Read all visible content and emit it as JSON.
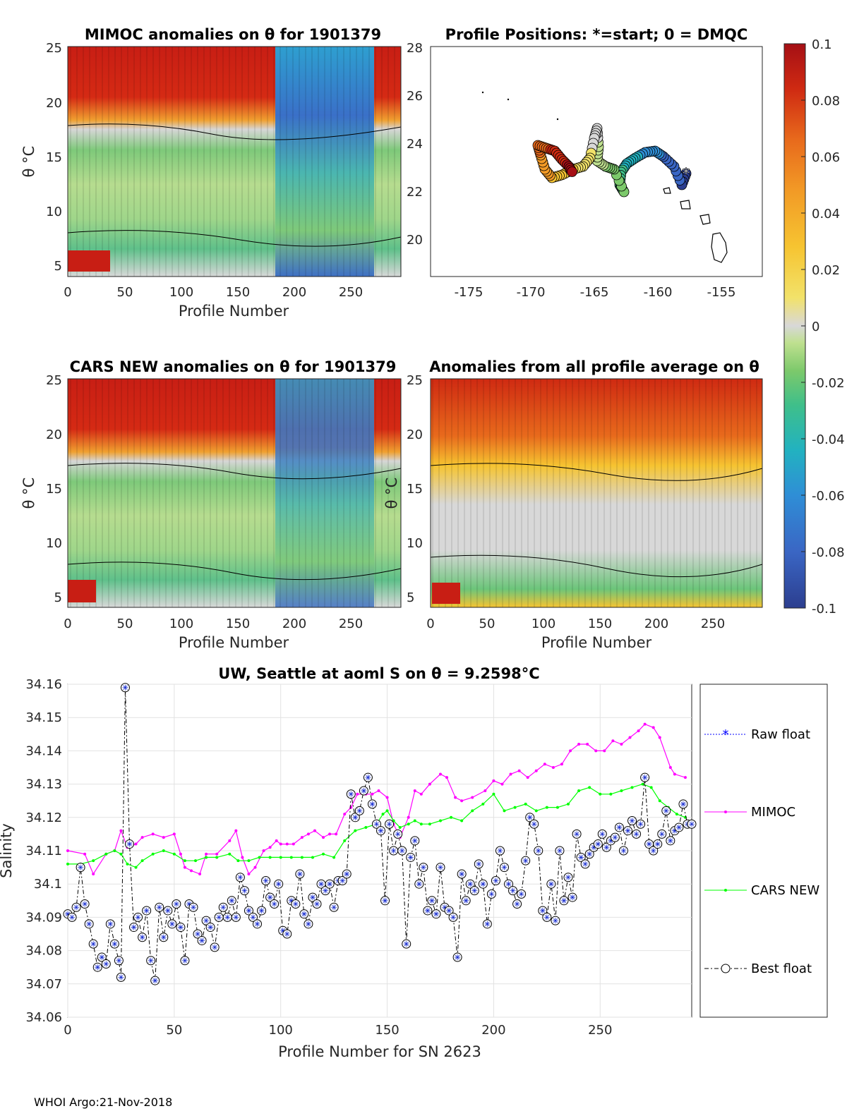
{
  "footer": "WHOI Argo:21-Nov-2018",
  "colorbar": {
    "ticks": [
      "0.1",
      "0.08",
      "0.06",
      "0.04",
      "0.02",
      "0",
      "-0.02",
      "-0.04",
      "-0.06",
      "-0.08",
      "-0.1"
    ],
    "colors": [
      "#2c3e8f",
      "#3a66c4",
      "#2f8ed6",
      "#22b2c0",
      "#3fbf8a",
      "#7cc96b",
      "#bfe08f",
      "#d8d8d8",
      "#f2e26a",
      "#f6c431",
      "#f29a26",
      "#e86a1c",
      "#cf2a12",
      "#a50f15"
    ]
  },
  "panels": {
    "mimoc": {
      "title": "MIMOC anomalies on θ  for 1901379",
      "xlabel": "Profile Number",
      "ylabel": "θ °C",
      "xticks": [
        "0",
        "50",
        "100",
        "150",
        "200",
        "250"
      ],
      "yticks": [
        "25",
        "20",
        "15",
        "10",
        "5"
      ]
    },
    "positions": {
      "title": "Profile Positions: *=start; 0 = DMQC",
      "xticks": [
        "-175",
        "-170",
        "-165",
        "-160",
        "-155"
      ],
      "yticks": [
        "28",
        "26",
        "24",
        "22",
        "20"
      ]
    },
    "cars": {
      "title": "CARS NEW anomalies on θ for 1901379",
      "xlabel": "Profile Number",
      "ylabel": "θ °C",
      "xticks": [
        "0",
        "50",
        "100",
        "150",
        "200",
        "250"
      ],
      "yticks": [
        "25",
        "20",
        "15",
        "10",
        "5"
      ]
    },
    "allavg": {
      "title": "Anomalies from all profile average on θ",
      "xlabel": "Profile Number",
      "ylabel": "θ °C",
      "xticks": [
        "0",
        "50",
        "100",
        "150",
        "200",
        "250"
      ],
      "yticks": [
        "25",
        "20",
        "15",
        "10",
        "5"
      ]
    }
  },
  "chart_data": {
    "type": "line",
    "title": "UW, Seattle at aoml S on θ = 9.2598°C",
    "xlabel": "Profile Number for SN 2623",
    "ylabel": "Salinity",
    "xlim": [
      0,
      293
    ],
    "ylim": [
      34.06,
      34.16
    ],
    "xticks": [
      0,
      50,
      100,
      150,
      200,
      250
    ],
    "yticks": [
      34.06,
      34.07,
      34.08,
      34.09,
      34.1,
      34.11,
      34.12,
      34.13,
      34.14,
      34.15,
      34.16
    ],
    "ytick_labels": [
      "34.06",
      "34.07",
      "34.08",
      "34.09",
      "34.1",
      "34.11",
      "34.12",
      "34.13",
      "34.14",
      "34.15",
      "34.16"
    ],
    "xtick_labels": [
      "0",
      "50",
      "100",
      "150",
      "200",
      "250"
    ],
    "legend": [
      "Raw float",
      "MIMOC",
      "CARS NEW",
      "Best float"
    ],
    "series": [
      {
        "name": "MIMOC",
        "color": "#ff00ff",
        "x": [
          0,
          8,
          12,
          18,
          22,
          25,
          28,
          32,
          35,
          40,
          45,
          50,
          53,
          55,
          58,
          62,
          65,
          70,
          76,
          79,
          82,
          85,
          88,
          92,
          95,
          98,
          100,
          103,
          106,
          110,
          113,
          116,
          120,
          123,
          126,
          130,
          133,
          136,
          140,
          143,
          146,
          150,
          153,
          156,
          160,
          163,
          166,
          170,
          175,
          178,
          182,
          185,
          190,
          196,
          200,
          204,
          208,
          212,
          216,
          220,
          224,
          228,
          232,
          236,
          240,
          244,
          248,
          252,
          256,
          260,
          264,
          268,
          271,
          275,
          278,
          283,
          285,
          290
        ],
        "y": [
          34.11,
          34.109,
          34.103,
          34.109,
          34.11,
          34.116,
          34.111,
          34.112,
          34.114,
          34.115,
          34.114,
          34.115,
          34.109,
          34.105,
          34.104,
          34.103,
          34.109,
          34.109,
          34.113,
          34.116,
          34.108,
          34.103,
          34.105,
          34.11,
          34.111,
          34.113,
          34.112,
          34.112,
          34.112,
          34.114,
          34.115,
          34.116,
          34.114,
          34.115,
          34.115,
          34.121,
          34.123,
          34.127,
          34.127,
          34.127,
          34.128,
          34.126,
          34.118,
          34.114,
          34.12,
          34.128,
          34.127,
          34.13,
          34.133,
          34.132,
          34.126,
          34.125,
          34.126,
          34.128,
          34.131,
          34.13,
          34.133,
          34.134,
          34.132,
          34.134,
          34.136,
          34.135,
          34.136,
          34.14,
          34.142,
          34.142,
          34.14,
          34.14,
          34.143,
          34.142,
          34.144,
          34.146,
          34.148,
          34.147,
          34.144,
          34.135,
          34.133,
          34.132
        ]
      },
      {
        "name": "CARS NEW",
        "color": "#00ff00",
        "x": [
          0,
          6,
          12,
          18,
          22,
          25,
          28,
          32,
          35,
          40,
          45,
          50,
          55,
          60,
          65,
          70,
          76,
          80,
          85,
          90,
          95,
          100,
          105,
          110,
          115,
          120,
          125,
          130,
          135,
          140,
          145,
          148,
          150,
          153,
          156,
          160,
          163,
          166,
          170,
          175,
          180,
          185,
          190,
          195,
          200,
          205,
          210,
          215,
          220,
          225,
          230,
          235,
          240,
          245,
          250,
          255,
          260,
          265,
          270,
          274,
          278,
          282,
          286,
          290
        ],
        "y": [
          34.106,
          34.106,
          34.107,
          34.109,
          34.11,
          34.109,
          34.106,
          34.105,
          34.107,
          34.109,
          34.11,
          34.109,
          34.107,
          34.107,
          34.108,
          34.108,
          34.109,
          34.107,
          34.107,
          34.108,
          34.108,
          34.108,
          34.108,
          34.108,
          34.108,
          34.109,
          34.108,
          34.113,
          34.116,
          34.117,
          34.118,
          34.121,
          34.122,
          34.119,
          34.117,
          34.118,
          34.119,
          34.118,
          34.118,
          34.119,
          34.12,
          34.119,
          34.122,
          34.124,
          34.127,
          34.122,
          34.123,
          34.124,
          34.122,
          34.123,
          34.123,
          34.124,
          34.128,
          34.129,
          34.127,
          34.127,
          34.128,
          34.129,
          34.13,
          34.129,
          34.125,
          34.123,
          34.121,
          34.12
        ]
      },
      {
        "name": "Best float",
        "color": "#000000",
        "x": [
          0,
          2,
          4,
          6,
          8,
          10,
          12,
          14,
          16,
          18,
          20,
          22,
          24,
          25,
          27,
          29,
          31,
          33,
          35,
          37,
          39,
          41,
          43,
          45,
          47,
          49,
          51,
          53,
          55,
          57,
          59,
          61,
          63,
          65,
          67,
          69,
          71,
          73,
          75,
          77,
          79,
          81,
          83,
          85,
          87,
          89,
          91,
          93,
          95,
          97,
          99,
          101,
          103,
          105,
          107,
          109,
          111,
          113,
          115,
          117,
          119,
          121,
          123,
          125,
          127,
          129,
          131,
          133,
          135,
          137,
          139,
          141,
          143,
          145,
          147,
          149,
          151,
          153,
          155,
          157,
          159,
          161,
          163,
          165,
          167,
          169,
          171,
          173,
          175,
          177,
          179,
          181,
          183,
          185,
          187,
          189,
          191,
          193,
          195,
          197,
          199,
          201,
          203,
          205,
          207,
          209,
          211,
          213,
          215,
          217,
          219,
          221,
          223,
          225,
          227,
          229,
          231,
          233,
          235,
          237,
          239,
          241,
          243,
          245,
          247,
          249,
          251,
          253,
          255,
          257,
          259,
          261,
          263,
          265,
          267,
          269,
          271,
          273,
          275,
          277,
          279,
          281,
          283,
          285,
          287,
          289,
          291,
          293
        ],
        "y": [
          34.091,
          34.09,
          34.093,
          34.105,
          34.094,
          34.088,
          34.082,
          34.075,
          34.078,
          34.076,
          34.088,
          34.082,
          34.077,
          34.072,
          34.159,
          34.112,
          34.087,
          34.09,
          34.084,
          34.092,
          34.077,
          34.071,
          34.093,
          34.084,
          34.092,
          34.088,
          34.094,
          34.087,
          34.077,
          34.094,
          34.093,
          34.085,
          34.083,
          34.089,
          34.087,
          34.081,
          34.09,
          34.093,
          34.09,
          34.095,
          34.09,
          34.102,
          34.098,
          34.092,
          34.09,
          34.088,
          34.092,
          34.101,
          34.096,
          34.094,
          34.1,
          34.086,
          34.085,
          34.095,
          34.094,
          34.103,
          34.091,
          34.088,
          34.096,
          34.094,
          34.1,
          34.098,
          34.1,
          34.093,
          34.101,
          34.101,
          34.103,
          34.127,
          34.12,
          34.122,
          34.128,
          34.132,
          34.124,
          34.118,
          34.116,
          34.095,
          34.118,
          34.11,
          34.115,
          34.11,
          34.082,
          34.108,
          34.113,
          34.1,
          34.105,
          34.092,
          34.095,
          34.091,
          34.105,
          34.093,
          34.092,
          34.09,
          34.078,
          34.103,
          34.095,
          34.1,
          34.098,
          34.106,
          34.1,
          34.088,
          34.097,
          34.101,
          34.11,
          34.105,
          34.1,
          34.098,
          34.094,
          34.097,
          34.107,
          34.12,
          34.118,
          34.11,
          34.092,
          34.09,
          34.1,
          34.089,
          34.11,
          34.095,
          34.102,
          34.096,
          34.115,
          34.108,
          34.106,
          34.109,
          34.111,
          34.112,
          34.115,
          34.111,
          34.113,
          34.114,
          34.117,
          34.11,
          34.116,
          34.119,
          34.115,
          34.118,
          34.132,
          34.112,
          34.11,
          34.112,
          34.115,
          34.122,
          34.113,
          34.116,
          34.117,
          34.124,
          34.118,
          34.118
        ]
      }
    ]
  }
}
